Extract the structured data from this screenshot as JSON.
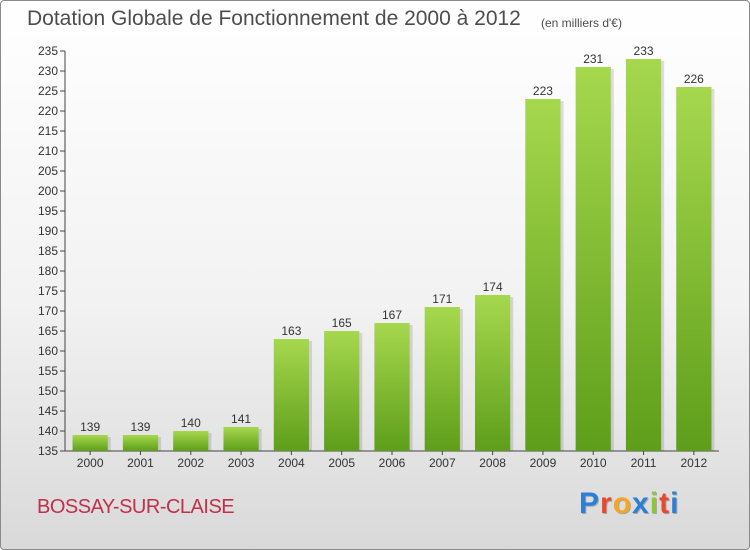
{
  "header": {
    "title": "Dotation Globale de Fonctionnement de 2000 à 2012",
    "subtitle": "(en milliers d'€)"
  },
  "footer": {
    "commune": "BOSSAY-SUR-CLAISE",
    "logo": "Proxiti",
    "logo_colors": [
      "#2b7fd6",
      "#e8492e",
      "#f5a623",
      "#2b7fd6",
      "#8cc63f",
      "#e8492e",
      "#2b7fd6"
    ]
  },
  "colors": {
    "bar_top": "#a6d84e",
    "bar_bottom": "#5e9e1a",
    "text": "#4d4d4d",
    "commune": "#c0304a"
  },
  "chart_data": {
    "type": "bar",
    "title": "Dotation Globale de Fonctionnement de 2000 à 2012",
    "subtitle": "(en milliers d'€)",
    "categories": [
      "2000",
      "2001",
      "2002",
      "2003",
      "2004",
      "2005",
      "2006",
      "2007",
      "2008",
      "2009",
      "2010",
      "2011",
      "2012"
    ],
    "values": [
      139,
      139,
      140,
      141,
      163,
      165,
      167,
      171,
      174,
      223,
      231,
      233,
      226
    ],
    "ylim": [
      135,
      235
    ],
    "yticks": [
      135,
      140,
      145,
      150,
      155,
      160,
      165,
      170,
      175,
      180,
      185,
      190,
      195,
      200,
      205,
      210,
      215,
      220,
      225,
      230,
      235
    ],
    "xlabel": "",
    "ylabel": "",
    "grid": false,
    "data_labels": true
  }
}
